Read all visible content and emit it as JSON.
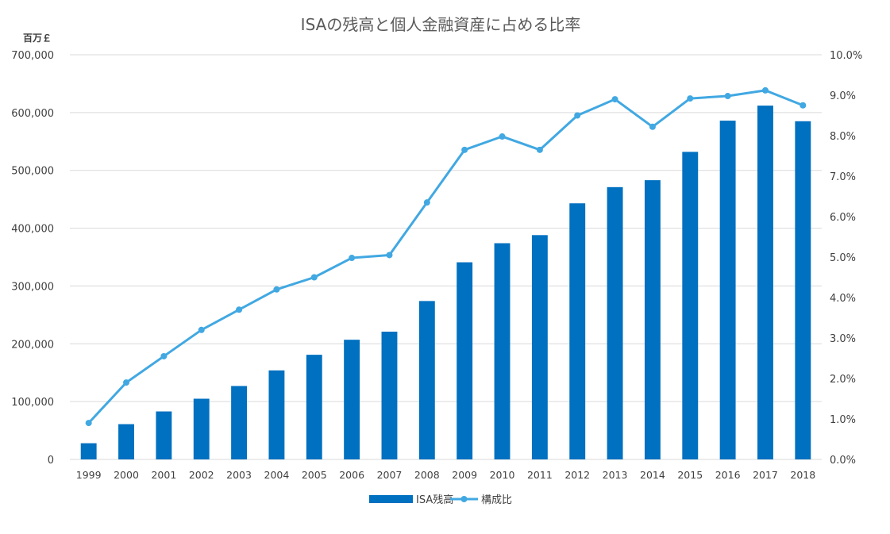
{
  "chart_data": {
    "type": "bar+line",
    "title": "ISAの残高と個人金融資産に占める比率",
    "left_axis_unit": "百万￡",
    "categories": [
      "1999",
      "2000",
      "2001",
      "2002",
      "2003",
      "2004",
      "2005",
      "2006",
      "2007",
      "2008",
      "2009",
      "2010",
      "2011",
      "2012",
      "2013",
      "2014",
      "2015",
      "2016",
      "2017",
      "2018"
    ],
    "series": [
      {
        "name": "ISA残高",
        "type": "bar",
        "axis": "left",
        "color": "#0070c0",
        "values": [
          28000,
          61000,
          83000,
          105000,
          127000,
          154000,
          181000,
          207000,
          221000,
          274000,
          341000,
          374000,
          388000,
          443000,
          471000,
          483000,
          532000,
          586000,
          612000,
          585000
        ]
      },
      {
        "name": "構成比",
        "type": "line",
        "axis": "right",
        "color": "#41a8e2",
        "values": [
          0.9,
          1.9,
          2.55,
          3.2,
          3.7,
          4.2,
          4.5,
          4.98,
          5.05,
          6.35,
          7.65,
          7.98,
          7.65,
          8.5,
          8.9,
          8.22,
          8.92,
          8.98,
          9.12,
          8.75
        ]
      }
    ],
    "left_ylim": [
      0,
      700000
    ],
    "left_ticks": [
      "0",
      "100,000",
      "200,000",
      "300,000",
      "400,000",
      "500,000",
      "600,000",
      "700,000"
    ],
    "right_ylim": [
      0,
      10
    ],
    "right_ticks": [
      "0.0%",
      "1.0%",
      "2.0%",
      "3.0%",
      "4.0%",
      "5.0%",
      "6.0%",
      "7.0%",
      "8.0%",
      "9.0%",
      "10.0%"
    ],
    "grid": true,
    "legend_position": "bottom"
  }
}
